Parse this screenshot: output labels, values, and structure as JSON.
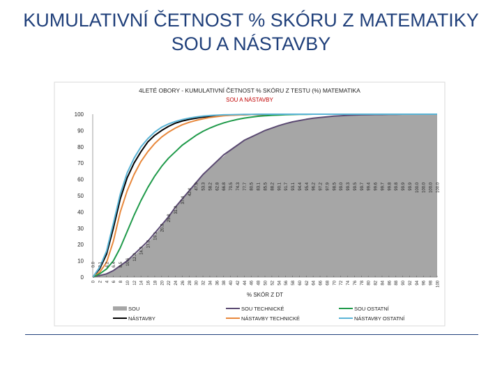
{
  "slide": {
    "title_line1": "KUMULATIVNÍ ČETNOST % SKÓRU Z MATEMATIKY",
    "title_line2": "SOU A NÁSTAVBY"
  },
  "colors": {
    "title": "#1f3f7a",
    "sou": "#a6a6a6",
    "nastavby": "#000000",
    "sou_technicke": "#5b4a72",
    "nastavby_technicke": "#e8873a",
    "sou_ostatni": "#1f9a4a",
    "nastavby_ostatni": "#5ab4d6",
    "title_red": "#c00000",
    "plot_area": "#7f7f7f"
  },
  "chart_data": {
    "type": "area",
    "title": "4LETÉ OBORY - KUMULATIVNÍ ČETNOST % SKÓRU Z TESTU (%) MATEMATIKA",
    "subtitle": "SOU A NÁSTAVBY",
    "xlabel": "% SKÓR Z DT",
    "ylabel": "",
    "xlim": [
      0,
      100
    ],
    "ylim": [
      0,
      100
    ],
    "yticks": [
      0,
      10,
      20,
      30,
      40,
      50,
      60,
      70,
      80,
      90,
      100
    ],
    "x": [
      0,
      2,
      4,
      6,
      8,
      10,
      12,
      14,
      16,
      18,
      20,
      22,
      24,
      26,
      28,
      30,
      32,
      34,
      36,
      38,
      40,
      42,
      44,
      46,
      48,
      50,
      52,
      54,
      56,
      58,
      60,
      62,
      64,
      66,
      68,
      70,
      72,
      74,
      76,
      78,
      80,
      82,
      84,
      86,
      88,
      90,
      92,
      94,
      96,
      98,
      100
    ],
    "x_tick_labels": [
      "0",
      "2",
      "4",
      "6",
      "8",
      "10",
      "12",
      "14",
      "16",
      "18",
      "20",
      "22",
      "24",
      "26",
      "28",
      "30",
      "32",
      "34",
      "36",
      "38",
      "40",
      "42",
      "44",
      "46",
      "48",
      "50",
      "52",
      "54",
      "56",
      "58",
      "60",
      "62",
      "64",
      "66",
      "68",
      "70",
      "72",
      "74",
      "76",
      "78",
      "80",
      "82",
      "84",
      "86",
      "88",
      "90",
      "92",
      "94",
      "96",
      "98",
      "100"
    ],
    "data_labels": [
      "0.0",
      "2.1",
      "4.2",
      "6.4",
      "8.5",
      "10.6",
      "12.8",
      "14.9",
      "17.0",
      "19.1",
      "20.8",
      "25.8",
      "31.8",
      "37.4",
      "42.4",
      "47.9",
      "53.3",
      "58.2",
      "62.8",
      "66.8",
      "70.5",
      "74.3",
      "77.7",
      "80.5",
      "83.1",
      "85.5",
      "88.2",
      "90.1",
      "91.7",
      "93.1",
      "94.4",
      "95.4",
      "96.2",
      "97.2",
      "97.9",
      "98.5",
      "99.0",
      "99.3",
      "99.5",
      "99.7",
      "99.4",
      "99.6",
      "99.7",
      "99.8",
      "99.8",
      "99.9",
      "99.9",
      "100.0",
      "100.0",
      "100.0",
      "100.0"
    ],
    "series": [
      {
        "name": "SOU",
        "kind": "area",
        "color": "#a6a6a6",
        "values": [
          0,
          1,
          2,
          4,
          7,
          10,
          13,
          17,
          21,
          26,
          31,
          37,
          42,
          48,
          53,
          58,
          63,
          67,
          71,
          74,
          78,
          81,
          84,
          86,
          88,
          90,
          91.5,
          93,
          94.2,
          95.3,
          96.1,
          96.9,
          97.5,
          98,
          98.4,
          98.8,
          99,
          99.3,
          99.5,
          99.6,
          99.7,
          99.8,
          99.8,
          99.9,
          99.9,
          100,
          100,
          100,
          100,
          100,
          100
        ]
      },
      {
        "name": "NÁSTAVBY",
        "kind": "line",
        "color": "#000000",
        "values": [
          0,
          5,
          14,
          30,
          48,
          61,
          70,
          77,
          83,
          87,
          90,
          92.5,
          94.5,
          95.8,
          96.8,
          97.5,
          98.2,
          98.6,
          99,
          99.2,
          99.4,
          99.6,
          99.7,
          99.8,
          99.8,
          99.9,
          99.9,
          100,
          100,
          100,
          100,
          100,
          100,
          100,
          100,
          100,
          100,
          100,
          100,
          100,
          100,
          100,
          100,
          100,
          100,
          100,
          100,
          100,
          100,
          100,
          100
        ]
      },
      {
        "name": "SOU TECHNICKÉ",
        "kind": "line",
        "color": "#5b4a72",
        "values": [
          0,
          1,
          2,
          4,
          7,
          10,
          14,
          18,
          22,
          27,
          32,
          37,
          43,
          48,
          53,
          58,
          63,
          67,
          71,
          75,
          78,
          81,
          84,
          86,
          88,
          90,
          91.5,
          93,
          94.2,
          95.3,
          96.1,
          96.9,
          97.5,
          98,
          98.4,
          98.8,
          99,
          99.3,
          99.5,
          99.6,
          99.7,
          99.8,
          99.8,
          99.9,
          99.9,
          100,
          100,
          100,
          100,
          100,
          100
        ]
      },
      {
        "name": "NÁSTAVBY TECHNICKÉ",
        "kind": "line",
        "color": "#e8873a",
        "values": [
          0,
          3,
          9,
          22,
          40,
          53,
          63,
          71,
          77,
          82,
          86,
          89,
          91.5,
          93.5,
          95,
          96.2,
          97.2,
          98,
          98.5,
          99,
          99.3,
          99.5,
          99.7,
          99.8,
          99.9,
          99.9,
          100,
          100,
          100,
          100,
          100,
          100,
          100,
          100,
          100,
          100,
          100,
          100,
          100,
          100,
          100,
          100,
          100,
          100,
          100,
          100,
          100,
          100,
          100,
          100,
          100
        ]
      },
      {
        "name": "SOU OSTATNÍ",
        "kind": "line",
        "color": "#1f9a4a",
        "values": [
          0,
          2,
          5,
          10,
          18,
          28,
          38,
          47,
          55,
          62,
          68,
          73,
          77,
          81,
          84,
          87,
          89.5,
          91.5,
          93.2,
          94.6,
          95.8,
          96.8,
          97.6,
          98.2,
          98.7,
          99,
          99.3,
          99.5,
          99.7,
          99.8,
          99.9,
          99.9,
          100,
          100,
          100,
          100,
          100,
          100,
          100,
          100,
          100,
          100,
          100,
          100,
          100,
          100,
          100,
          100,
          100,
          100,
          100
        ]
      },
      {
        "name": "NÁSTAVBY OSTATNÍ",
        "kind": "line",
        "color": "#5ab4d6",
        "values": [
          0,
          6,
          16,
          33,
          51,
          64,
          73,
          80,
          85,
          89,
          92,
          94,
          95.5,
          96.7,
          97.6,
          98.3,
          98.8,
          99.2,
          99.4,
          99.6,
          99.7,
          99.8,
          99.9,
          99.9,
          100,
          100,
          100,
          100,
          100,
          100,
          100,
          100,
          100,
          100,
          100,
          100,
          100,
          100,
          100,
          100,
          100,
          100,
          100,
          100,
          100,
          100,
          100,
          100,
          100,
          100,
          100
        ]
      }
    ],
    "legend": {
      "placement": "bottom",
      "items": [
        "SOU",
        "SOU TECHNICKÉ",
        "SOU OSTATNÍ",
        "NÁSTAVBY",
        "NÁSTAVBY TECHNICKÉ",
        "NÁSTAVBY OSTATNÍ"
      ]
    },
    "grid": false
  }
}
